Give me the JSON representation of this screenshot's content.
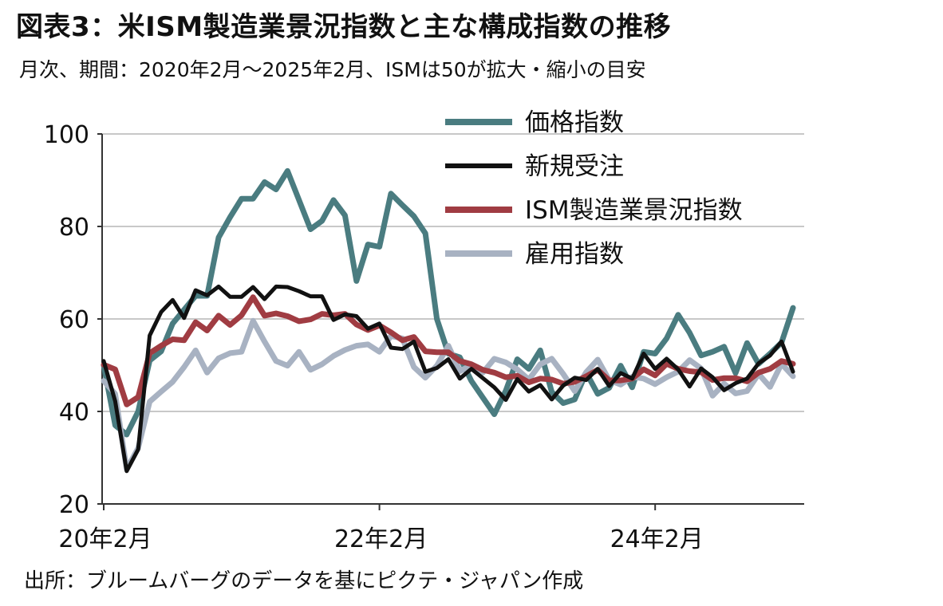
{
  "header": {
    "title": "図表3：米ISM製造業景況指数と主な構成指数の推移",
    "subtitle": "月次、期間：2020年2月～2025年2月、ISMは50が拡大・縮小の目安"
  },
  "footer": {
    "source": "出所：ブルームバーグのデータを基にピクテ・ジャパン作成"
  },
  "chart_data": {
    "type": "line",
    "title": "図表3：米ISM製造業景況指数と主な構成指数の推移",
    "subtitle": "月次、期間：2020年2月～2025年2月、ISMは50が拡大・縮小の目安",
    "xlabel": "",
    "ylabel": "",
    "ylim": [
      20,
      100
    ],
    "yticks": [
      "20",
      "40",
      "60",
      "80",
      "100"
    ],
    "xticks": [
      {
        "label": "20年2月",
        "index": 0
      },
      {
        "label": "22年2月",
        "index": 24
      },
      {
        "label": "24年2月",
        "index": 48
      }
    ],
    "grid": "horizontal",
    "legend_position": "top-right",
    "x": [
      "2020-02",
      "2020-03",
      "2020-04",
      "2020-05",
      "2020-06",
      "2020-07",
      "2020-08",
      "2020-09",
      "2020-10",
      "2020-11",
      "2020-12",
      "2021-01",
      "2021-02",
      "2021-03",
      "2021-04",
      "2021-05",
      "2021-06",
      "2021-07",
      "2021-08",
      "2021-09",
      "2021-10",
      "2021-11",
      "2021-12",
      "2022-01",
      "2022-02",
      "2022-03",
      "2022-04",
      "2022-05",
      "2022-06",
      "2022-07",
      "2022-08",
      "2022-09",
      "2022-10",
      "2022-11",
      "2022-12",
      "2023-01",
      "2023-02",
      "2023-03",
      "2023-04",
      "2023-05",
      "2023-06",
      "2023-07",
      "2023-08",
      "2023-09",
      "2023-10",
      "2023-11",
      "2023-12",
      "2024-01",
      "2024-02",
      "2024-03",
      "2024-04",
      "2024-05",
      "2024-06",
      "2024-07",
      "2024-08",
      "2024-09",
      "2024-10",
      "2024-11",
      "2024-12",
      "2025-01",
      "2025-02"
    ],
    "series": [
      {
        "name": "価格指数",
        "color": "#4a7c80",
        "width": 7,
        "values": [
          50,
          37,
          35,
          40,
          51,
          53,
          59,
          62,
          65,
          65,
          77.6,
          82,
          86,
          86,
          89.6,
          88,
          92,
          85.7,
          79.4,
          81.2,
          85.7,
          82.4,
          68.2,
          76.1,
          75.6,
          87.1,
          84.6,
          82.2,
          78.5,
          60,
          52.5,
          51.7,
          46.6,
          43,
          39.4,
          44.5,
          51.3,
          49.2,
          53.2,
          44.2,
          41.8,
          42.6,
          48.4,
          43.8,
          45.1,
          49.9,
          45.2,
          52.9,
          52.5,
          55.8,
          60.9,
          57,
          52.1,
          52.9,
          54,
          48.3,
          54.8,
          50.3,
          52.5,
          54.9,
          62.4
        ]
      },
      {
        "name": "新規受注",
        "color": "#111111",
        "width": 5,
        "values": [
          50.9,
          42.2,
          27.1,
          31.8,
          56.4,
          61.5,
          64.1,
          60.2,
          66.2,
          65.1,
          67,
          64.8,
          64.8,
          66.9,
          64.3,
          67,
          66.9,
          66,
          64.9,
          64.9,
          59.8,
          61,
          60.6,
          57.9,
          59,
          53.8,
          53.5,
          55.1,
          48.6,
          49.4,
          51.3,
          47.1,
          49.2,
          47.2,
          45.2,
          42.5,
          47,
          44.3,
          45.7,
          42.6,
          45.6,
          47.3,
          46.8,
          49.2,
          45.5,
          48.3,
          47.1,
          52.5,
          49.2,
          51.4,
          49.1,
          45.4,
          49.3,
          47.4,
          44.6,
          46.1,
          47.1,
          50.4,
          52.1,
          55.1,
          48.6
        ]
      },
      {
        "name": "ISM製造業景況指数",
        "color": "#a03c42",
        "width": 7,
        "values": [
          50.1,
          49.1,
          41.5,
          43.1,
          52.6,
          54.2,
          55.6,
          55.4,
          59.3,
          57.5,
          60.7,
          58.7,
          60.8,
          64.7,
          60.7,
          61.2,
          60.6,
          59.5,
          59.9,
          61.1,
          60.8,
          61.1,
          58.8,
          57.6,
          58.6,
          57.1,
          55.4,
          56.1,
          53,
          52.8,
          52.8,
          50.9,
          50.2,
          49,
          48.4,
          47.4,
          47.7,
          46.3,
          47.1,
          46.9,
          46,
          46.4,
          47.6,
          49,
          46.7,
          46.7,
          47.1,
          49.1,
          47.8,
          50.3,
          49.2,
          48.7,
          48.5,
          46.8,
          47.2,
          47.2,
          46.5,
          48.4,
          49.2,
          50.9,
          50.3
        ]
      },
      {
        "name": "雇用指数",
        "color": "#a8b2c2",
        "width": 7,
        "values": [
          46.6,
          43.8,
          27.5,
          32.1,
          42.1,
          44.3,
          46.4,
          49.6,
          53.2,
          48.4,
          51.5,
          52.6,
          52.9,
          59.6,
          55.1,
          50.9,
          49.9,
          52.9,
          49,
          50.2,
          52,
          53.3,
          54.2,
          54.5,
          52.9,
          56.3,
          55.8,
          49.6,
          47.3,
          49.9,
          54.2,
          48.7,
          50,
          48.4,
          51.4,
          50.6,
          49.1,
          46.9,
          50.2,
          51.4,
          48.1,
          44.4,
          48.5,
          51.2,
          46.8,
          45.8,
          47.5,
          47.1,
          45.9,
          47.4,
          48.6,
          51.1,
          49.3,
          43.4,
          46,
          43.9,
          44.4,
          48.1,
          45.3,
          50.3,
          47.6
        ]
      }
    ]
  }
}
